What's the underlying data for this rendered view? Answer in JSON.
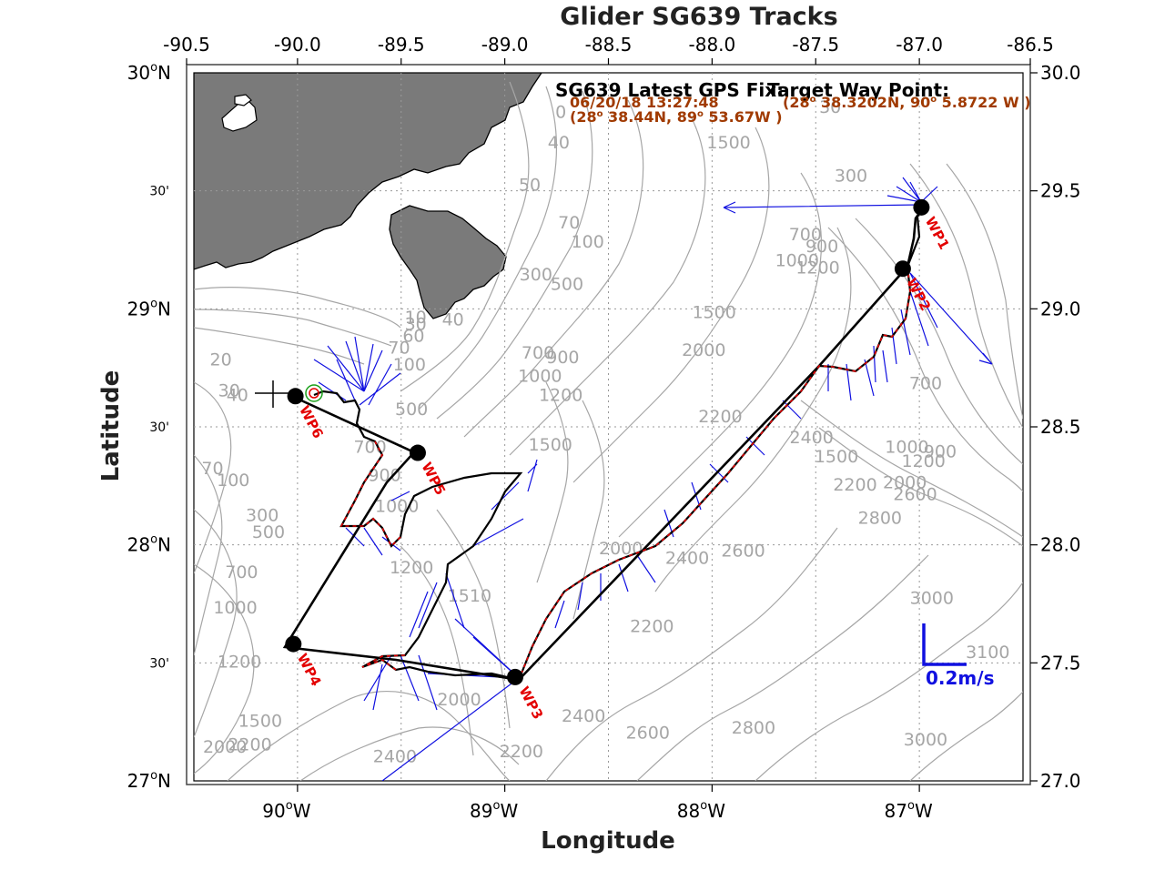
{
  "title": "Glider SG639 Tracks",
  "xlabel": "Longitude",
  "ylabel": "Latitude",
  "axes": {
    "top_ticks": [
      "-90.5",
      "-90.0",
      "-89.5",
      "-89.0",
      "-88.5",
      "-88.0",
      "-87.5",
      "-87.0",
      "-86.5"
    ],
    "top_values": [
      -90.5,
      -90.0,
      -89.5,
      -89.0,
      -88.5,
      -88.0,
      -87.5,
      -87.0,
      -86.5
    ],
    "bottom_ticks": [
      "90",
      "89",
      "88",
      "87"
    ],
    "bottom_suffix": "W",
    "bottom_values": [
      -90.0,
      -89.0,
      -88.0,
      -87.0
    ],
    "left_labels": [
      {
        "lat": 30.0,
        "deg": "30",
        "suffix": "N"
      },
      {
        "lat": 29.5,
        "min": "30'"
      },
      {
        "lat": 29.0,
        "deg": "29",
        "suffix": "N"
      },
      {
        "lat": 28.5,
        "min": "30'"
      },
      {
        "lat": 28.0,
        "deg": "28",
        "suffix": "N"
      },
      {
        "lat": 27.5,
        "min": "30'"
      },
      {
        "lat": 27.0,
        "deg": "27",
        "suffix": "N"
      }
    ],
    "right_ticks": [
      "30.0",
      "29.5",
      "29.0",
      "28.5",
      "28.0",
      "27.5",
      "27.0"
    ],
    "right_values": [
      30.0,
      29.5,
      29.0,
      28.5,
      28.0,
      27.5,
      27.0
    ],
    "lon_range": [
      -90.5,
      -86.5
    ],
    "lat_range": [
      27.0,
      30.0
    ],
    "grid": true
  },
  "latest_gps": {
    "heading": "SG639 Latest GPS Fix:",
    "time": "06/20/18 13:27:48",
    "pos_lat": "28",
    "pos_lat_min": "38.44N,",
    "pos_lon": "89",
    "pos_lon_min": "53.67W )"
  },
  "target_waypoint": {
    "heading": "Target Way Point:",
    "pos_lat": "28",
    "pos_lat_min": "38.3202N,",
    "pos_lon": "90",
    "pos_lon_min": "5.8722 W )"
  },
  "scale": {
    "label": "0.2m/s",
    "color": "#1010e0"
  },
  "waypoints": [
    {
      "name": "WP1",
      "lon": -86.99,
      "lat": 29.43
    },
    {
      "name": "WP2",
      "lon": -87.08,
      "lat": 29.17
    },
    {
      "name": "WP3",
      "lon": -88.95,
      "lat": 27.44
    },
    {
      "name": "WP4",
      "lon": -90.02,
      "lat": 27.58
    },
    {
      "name": "WP5",
      "lon": -89.42,
      "lat": 28.39
    },
    {
      "name": "WP6",
      "lon": -90.01,
      "lat": 28.63
    }
  ],
  "contour_labels": [
    {
      "t": "20",
      "lon": -90.37,
      "lat": 28.76
    },
    {
      "t": "30",
      "lon": -90.33,
      "lat": 28.63
    },
    {
      "t": "40",
      "lon": -90.29,
      "lat": 28.61
    },
    {
      "t": "40",
      "lon": -88.74,
      "lat": 29.68
    },
    {
      "t": "50",
      "lon": -88.88,
      "lat": 29.5
    },
    {
      "t": "70",
      "lon": -88.69,
      "lat": 29.34
    },
    {
      "t": "100",
      "lon": -88.6,
      "lat": 29.26
    },
    {
      "t": "300",
      "lon": -88.85,
      "lat": 29.12
    },
    {
      "t": "500",
      "lon": -88.7,
      "lat": 29.08
    },
    {
      "t": "10",
      "lon": -89.43,
      "lat": 28.94
    },
    {
      "t": "30",
      "lon": -89.43,
      "lat": 28.91
    },
    {
      "t": "40",
      "lon": -89.25,
      "lat": 28.93
    },
    {
      "t": "60",
      "lon": -89.44,
      "lat": 28.86
    },
    {
      "t": "70",
      "lon": -89.51,
      "lat": 28.81
    },
    {
      "t": "100",
      "lon": -89.46,
      "lat": 28.74
    },
    {
      "t": "700",
      "lon": -88.84,
      "lat": 28.79
    },
    {
      "t": "900",
      "lon": -88.72,
      "lat": 28.77
    },
    {
      "t": "1000",
      "lon": -88.83,
      "lat": 28.69
    },
    {
      "t": "1200",
      "lon": -88.73,
      "lat": 28.61
    },
    {
      "t": "1500",
      "lon": -87.99,
      "lat": 28.96
    },
    {
      "t": "2000",
      "lon": -88.04,
      "lat": 28.8
    },
    {
      "t": "2200",
      "lon": -87.96,
      "lat": 28.52
    },
    {
      "t": "2400",
      "lon": -87.52,
      "lat": 28.43
    },
    {
      "t": "1500",
      "lon": -87.4,
      "lat": 28.35
    },
    {
      "t": "2200",
      "lon": -87.31,
      "lat": 28.23
    },
    {
      "t": "2000",
      "lon": -87.07,
      "lat": 28.24
    },
    {
      "t": "2600",
      "lon": -87.02,
      "lat": 28.19
    },
    {
      "t": "1000",
      "lon": -87.06,
      "lat": 28.39
    },
    {
      "t": "1200",
      "lon": -86.98,
      "lat": 28.33
    },
    {
      "t": "900",
      "lon": -86.9,
      "lat": 28.37
    },
    {
      "t": "700",
      "lon": -86.97,
      "lat": 28.66
    },
    {
      "t": "2800",
      "lon": -87.19,
      "lat": 28.09
    },
    {
      "t": "300",
      "lon": -87.33,
      "lat": 29.54
    },
    {
      "t": "700",
      "lon": -87.55,
      "lat": 29.29
    },
    {
      "t": "900",
      "lon": -87.47,
      "lat": 29.24
    },
    {
      "t": "1000",
      "lon": -87.59,
      "lat": 29.18
    },
    {
      "t": "1200",
      "lon": -87.49,
      "lat": 29.15
    },
    {
      "t": "1500",
      "lon": -87.92,
      "lat": 29.68
    },
    {
      "t": "500",
      "lon": -89.45,
      "lat": 28.55
    },
    {
      "t": "700",
      "lon": -89.65,
      "lat": 28.39
    },
    {
      "t": "900",
      "lon": -89.58,
      "lat": 28.27
    },
    {
      "t": "1000",
      "lon": -89.52,
      "lat": 28.14
    },
    {
      "t": "1200",
      "lon": -89.45,
      "lat": 27.88
    },
    {
      "t": "1500",
      "lon": -88.78,
      "lat": 28.4
    },
    {
      "t": "70",
      "lon": -90.41,
      "lat": 28.3
    },
    {
      "t": "100",
      "lon": -90.31,
      "lat": 28.25
    },
    {
      "t": "300",
      "lon": -90.17,
      "lat": 28.1
    },
    {
      "t": "500",
      "lon": -90.14,
      "lat": 28.03
    },
    {
      "t": "700",
      "lon": -90.27,
      "lat": 27.86
    },
    {
      "t": "1000",
      "lon": -90.3,
      "lat": 27.71
    },
    {
      "t": "1200",
      "lon": -90.28,
      "lat": 27.48
    },
    {
      "t": "1500",
      "lon": -90.18,
      "lat": 27.23
    },
    {
      "t": "2000",
      "lon": -90.35,
      "lat": 27.12
    },
    {
      "t": "2200",
      "lon": -90.23,
      "lat": 27.13
    },
    {
      "t": "2400",
      "lon": -89.53,
      "lat": 27.08
    },
    {
      "t": "2000",
      "lon": -89.22,
      "lat": 27.32
    },
    {
      "t": "2200",
      "lon": -88.92,
      "lat": 27.1
    },
    {
      "t": "2400",
      "lon": -88.62,
      "lat": 27.25
    },
    {
      "t": "2600",
      "lon": -88.31,
      "lat": 27.18
    },
    {
      "t": "2200",
      "lon": -88.29,
      "lat": 27.63
    },
    {
      "t": "2000",
      "lon": -88.44,
      "lat": 27.96
    },
    {
      "t": "2400",
      "lon": -88.12,
      "lat": 27.92
    },
    {
      "t": "2600",
      "lon": -87.85,
      "lat": 27.95
    },
    {
      "t": "2800",
      "lon": -87.8,
      "lat": 27.2
    },
    {
      "t": "3000",
      "lon": -86.94,
      "lat": 27.75
    },
    {
      "t": "3000",
      "lon": -86.97,
      "lat": 27.15
    },
    {
      "t": "3100",
      "lon": -86.67,
      "lat": 27.52
    },
    {
      "t": "1510",
      "lon": -89.17,
      "lat": 27.76
    },
    {
      "t": "0",
      "lon": -88.73,
      "lat": 29.81
    },
    {
      "t": "30",
      "lon": -87.43,
      "lat": 29.83
    }
  ],
  "colors": {
    "land": "#7a7a7a",
    "contour": "#a6a6a6",
    "track": "#000000",
    "dive": "#e30000",
    "current": "#1010e0",
    "waypoint_label": "#e30000",
    "gps_text": "#a03a00"
  }
}
